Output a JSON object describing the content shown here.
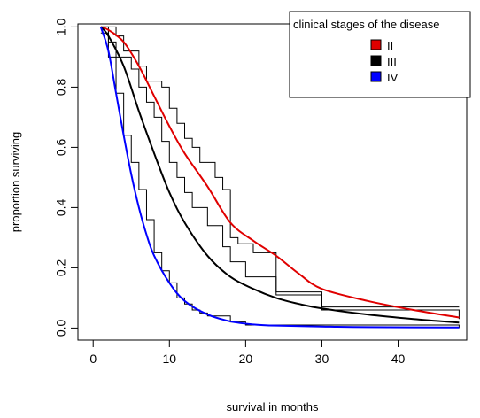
{
  "chart_data": {
    "type": "line",
    "xlabel": "survival in months",
    "ylabel": "proportion surviving",
    "xlim": [
      0,
      48
    ],
    "ylim": [
      0,
      1.0
    ],
    "x_ticks": [
      0,
      10,
      20,
      30,
      40
    ],
    "y_ticks": [
      0.0,
      0.2,
      0.4,
      0.6,
      0.8,
      1.0
    ],
    "x_tick_labels": [
      "0",
      "10",
      "20",
      "30",
      "40"
    ],
    "y_tick_labels": [
      "0.0",
      "0.2",
      "0.4",
      "0.6",
      "0.8",
      "1.0"
    ],
    "legend": {
      "title": "clinical stages of the disease",
      "position": "top-right",
      "items": [
        {
          "label": "II",
          "color": "#e00000"
        },
        {
          "label": "III",
          "color": "#000000"
        },
        {
          "label": "IV",
          "color": "#0000ff"
        }
      ]
    },
    "series": [
      {
        "name": "II",
        "color": "#e00000",
        "x": [
          1,
          2,
          4,
          6,
          8,
          10,
          12,
          15,
          18,
          21,
          24,
          27,
          30,
          36,
          42,
          48
        ],
        "y": [
          1.0,
          0.99,
          0.95,
          0.87,
          0.77,
          0.67,
          0.58,
          0.47,
          0.35,
          0.29,
          0.24,
          0.18,
          0.13,
          0.09,
          0.06,
          0.035
        ]
      },
      {
        "name": "III",
        "color": "#000000",
        "x": [
          1,
          2,
          4,
          6,
          8,
          10,
          12,
          15,
          18,
          21,
          24,
          27,
          30,
          36,
          42,
          48
        ],
        "y": [
          1.0,
          0.97,
          0.87,
          0.72,
          0.58,
          0.45,
          0.35,
          0.24,
          0.17,
          0.13,
          0.1,
          0.08,
          0.065,
          0.045,
          0.03,
          0.018
        ]
      },
      {
        "name": "IV",
        "color": "#0000ff",
        "x": [
          1,
          2,
          3,
          4,
          5,
          6,
          7,
          8,
          10,
          12,
          15,
          18,
          21,
          24,
          30,
          36,
          48
        ],
        "y": [
          1.0,
          0.92,
          0.78,
          0.64,
          0.51,
          0.4,
          0.31,
          0.24,
          0.15,
          0.09,
          0.045,
          0.022,
          0.012,
          0.008,
          0.005,
          0.003,
          0.002
        ]
      }
    ],
    "km_steps": [
      {
        "name": "II",
        "x": [
          1,
          3,
          4,
          6,
          7,
          9,
          10,
          11,
          12,
          13,
          14,
          16,
          17,
          18,
          19,
          21,
          24,
          30,
          48
        ],
        "y": [
          1.0,
          0.97,
          0.92,
          0.87,
          0.82,
          0.8,
          0.73,
          0.68,
          0.63,
          0.6,
          0.55,
          0.5,
          0.46,
          0.3,
          0.28,
          0.25,
          0.12,
          0.07,
          0.07
        ]
      },
      {
        "name": "III",
        "x": [
          1,
          2,
          3,
          5,
          6,
          7,
          8,
          9,
          10,
          11,
          12,
          13,
          15,
          17,
          18,
          20,
          24,
          30,
          48
        ],
        "y": [
          1.0,
          0.95,
          0.9,
          0.86,
          0.8,
          0.75,
          0.7,
          0.62,
          0.55,
          0.5,
          0.45,
          0.4,
          0.34,
          0.27,
          0.22,
          0.17,
          0.11,
          0.06,
          0.03
        ]
      },
      {
        "name": "IV",
        "x": [
          1,
          2,
          3,
          4,
          5,
          6,
          7,
          8,
          9,
          10,
          11,
          12,
          13,
          14,
          15,
          18,
          20,
          48
        ],
        "y": [
          0.98,
          0.9,
          0.78,
          0.64,
          0.55,
          0.46,
          0.36,
          0.25,
          0.19,
          0.15,
          0.1,
          0.08,
          0.06,
          0.05,
          0.04,
          0.02,
          0.01,
          0.0
        ]
      }
    ]
  }
}
